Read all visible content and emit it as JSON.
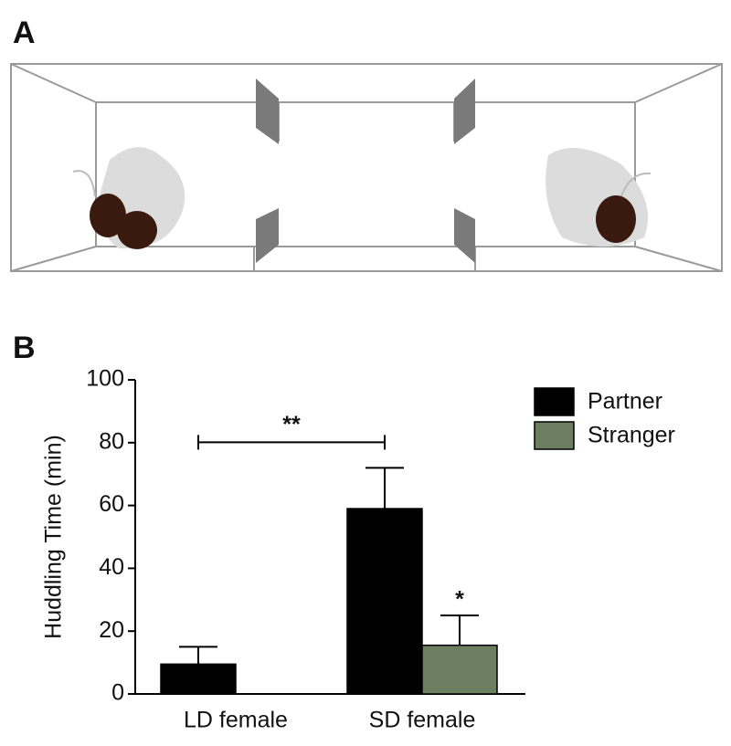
{
  "panels": {
    "a": "A",
    "b": "B"
  },
  "chart_data": {
    "type": "bar",
    "categories": [
      "LD female",
      "SD female"
    ],
    "series": [
      {
        "name": "Partner",
        "color": "#000000",
        "values": [
          9.5,
          59
        ],
        "errors": [
          5.5,
          13
        ]
      },
      {
        "name": "Stranger",
        "color": "#6b7f60",
        "values": [
          0,
          15.5
        ],
        "errors": [
          0,
          9.5
        ]
      }
    ],
    "ylabel": "Huddling Time (min)",
    "ylim": [
      0,
      100
    ],
    "yticks": [
      0,
      20,
      40,
      60,
      80,
      100
    ],
    "legend": "top-right",
    "annotations": [
      {
        "text": "**"
      },
      {
        "text": "*"
      }
    ]
  }
}
